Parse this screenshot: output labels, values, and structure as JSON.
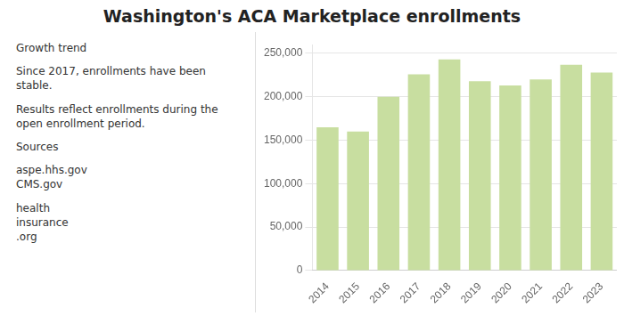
{
  "chart_data": {
    "type": "bar",
    "title": "Washington's ACA Marketplace enrollments",
    "categories": [
      "2014",
      "2015",
      "2016",
      "2017",
      "2018",
      "2019",
      "2020",
      "2021",
      "2022",
      "2023"
    ],
    "values": [
      165000,
      160000,
      200000,
      226000,
      243000,
      218000,
      213000,
      220000,
      237000,
      228000
    ],
    "color": "#c8dea0",
    "ylim": [
      0,
      260000
    ],
    "yticks": [
      0,
      {
        "value": 50000,
        "label": "50,000"
      },
      {
        "value": 100000,
        "label": "100,000"
      },
      {
        "value": 150000,
        "label": "150,000"
      },
      {
        "value": 200000,
        "label": "200,000"
      },
      {
        "value": 250000,
        "label": "250,000"
      }
    ],
    "grid": true,
    "annotations": [
      "Growth trend",
      "Since 2017, enrollments have been\nstable.",
      "Results reflect enrollments during the\nopen enrollment period.",
      "Sources",
      "aspe.hhs.gov\nCMS.gov",
      "health\ninsurance\n.org"
    ]
  }
}
